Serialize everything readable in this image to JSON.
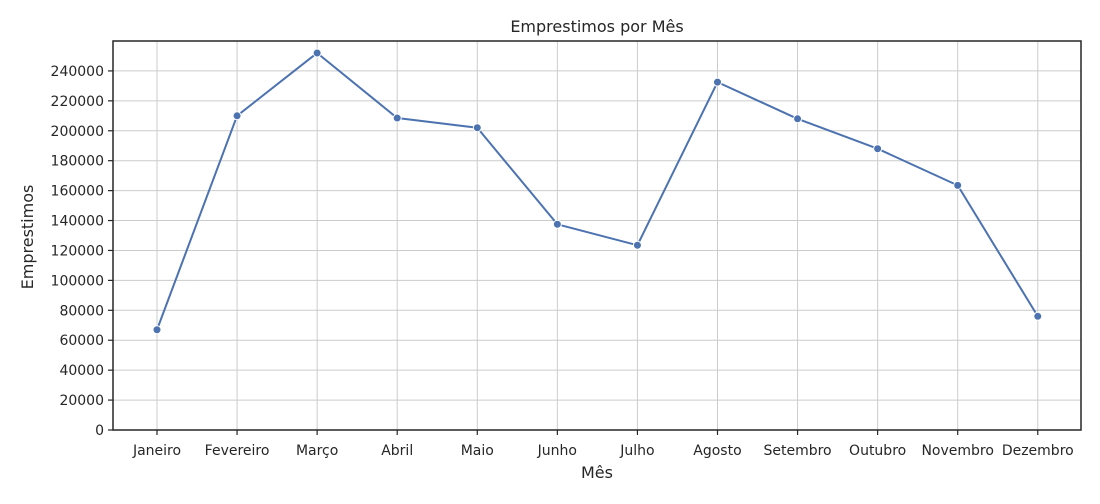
{
  "chart_data": {
    "type": "line",
    "title": "Emprestimos por Mês",
    "xlabel": "Mês",
    "ylabel": "Emprestimos",
    "categories": [
      "Janeiro",
      "Fevereiro",
      "Março",
      "Abril",
      "Maio",
      "Junho",
      "Julho",
      "Agosto",
      "Setembro",
      "Outubro",
      "Novembro",
      "Dezembro"
    ],
    "series": [
      {
        "values": [
          67000,
          210000,
          252000,
          208500,
          202000,
          137500,
          123500,
          232500,
          208000,
          188000,
          163500,
          76000
        ],
        "color": "#4c72b0"
      }
    ],
    "ylim": [
      0,
      260000
    ],
    "yticks": [
      0,
      20000,
      40000,
      60000,
      80000,
      100000,
      120000,
      140000,
      160000,
      180000,
      200000,
      220000,
      240000
    ],
    "ytick_labels": [
      "0",
      "20000",
      "40000",
      "60000",
      "80000",
      "100000",
      "120000",
      "140000",
      "160000",
      "180000",
      "200000",
      "220000",
      "240000"
    ],
    "grid": true,
    "legend": "none"
  }
}
